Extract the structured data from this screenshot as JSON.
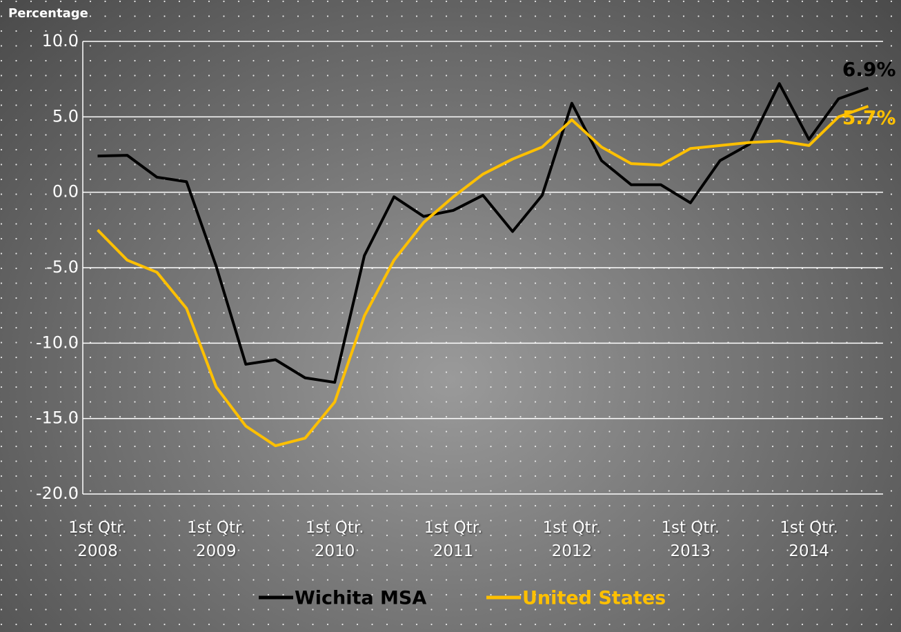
{
  "chart_data": {
    "type": "line",
    "ylabel": "Percentage",
    "categories": [
      "1st Qtr. 2008",
      null,
      null,
      null,
      "1st Qtr. 2009",
      null,
      null,
      null,
      "1st Qtr. 2010",
      null,
      null,
      null,
      "1st Qtr. 2011",
      null,
      null,
      null,
      "1st Qtr. 2012",
      null,
      null,
      null,
      "1st Qtr. 2013",
      null,
      null,
      null,
      "1st Qtr. 2014",
      null,
      null
    ],
    "series": [
      {
        "name": "Wichita MSA",
        "color": "#000000",
        "values": [
          2.4,
          2.45,
          1.0,
          0.7,
          -4.9,
          -11.4,
          -11.1,
          -12.3,
          -12.6,
          -4.2,
          -0.3,
          -1.6,
          -1.2,
          -0.2,
          -2.6,
          -0.2,
          5.9,
          2.1,
          0.5,
          0.5,
          -0.7,
          2.1,
          3.2,
          7.2,
          3.5,
          6.2,
          6.9
        ],
        "value_labels": [
          null,
          null,
          null,
          null,
          null,
          null,
          null,
          null,
          null,
          null,
          null,
          null,
          null,
          null,
          null,
          null,
          null,
          null,
          null,
          null,
          null,
          null,
          null,
          null,
          null,
          null,
          "6.9%"
        ]
      },
      {
        "name": "United States",
        "color": "#ffc000",
        "values": [
          -2.5,
          -4.5,
          -5.3,
          -7.7,
          -12.9,
          -15.5,
          -16.8,
          -16.3,
          -13.9,
          -8.2,
          -4.5,
          -2.0,
          -0.3,
          1.2,
          2.2,
          3.0,
          4.8,
          3.0,
          1.9,
          1.8,
          2.9,
          3.1,
          3.3,
          3.4,
          3.1,
          5.0,
          5.7
        ],
        "value_labels": [
          null,
          null,
          null,
          null,
          null,
          null,
          null,
          null,
          null,
          null,
          null,
          null,
          null,
          null,
          null,
          null,
          null,
          null,
          null,
          null,
          null,
          null,
          null,
          null,
          null,
          null,
          "5.7%"
        ]
      }
    ],
    "ylim": [
      -20,
      10
    ],
    "yticks": [
      {
        "value": -20,
        "label": "-20.0"
      },
      {
        "value": -15,
        "label": "-15.0"
      },
      {
        "value": -10,
        "label": "-10.0"
      },
      {
        "value": -5,
        "label": "-5.0"
      },
      {
        "value": 0,
        "label": "0.0"
      },
      {
        "value": 5,
        "label": "5.0"
      },
      {
        "value": 10,
        "label": "10.0"
      }
    ],
    "grid": true,
    "legend": "bottom"
  }
}
